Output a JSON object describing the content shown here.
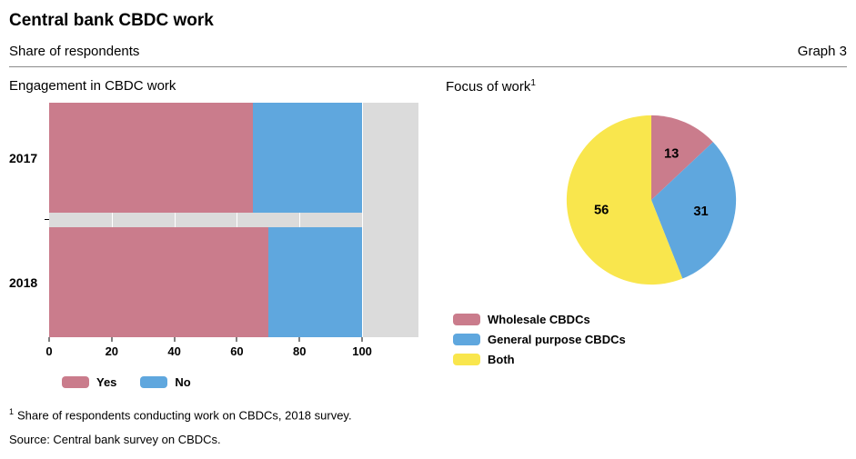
{
  "header": {
    "title": "Central bank CBDC work",
    "subtitle": "Share of respondents",
    "graph_label": "Graph 3"
  },
  "colors": {
    "pink": "#ca7c8c",
    "blue": "#5fa7de",
    "yellow": "#f9e64d",
    "plot_background": "#dbdbdb"
  },
  "chart_data": [
    {
      "type": "bar",
      "title": "Engagement in CBDC work",
      "orientation": "horizontal",
      "stacked": true,
      "categories": [
        "2017",
        "2018"
      ],
      "series": [
        {
          "name": "Yes",
          "color": "#ca7c8c",
          "values": [
            65,
            70
          ]
        },
        {
          "name": "No",
          "color": "#5fa7de",
          "values": [
            35,
            30
          ]
        }
      ],
      "xlim": [
        0,
        118
      ],
      "xticks": [
        0,
        20,
        40,
        60,
        80,
        100
      ],
      "grid": true,
      "legend_position": "bottom"
    },
    {
      "type": "pie",
      "title": "Focus of work",
      "title_superscript": "1",
      "slices": [
        {
          "label": "Wholesale CBDCs",
          "value": 13,
          "color": "#ca7c8c"
        },
        {
          "label": "General purpose CBDCs",
          "value": 31,
          "color": "#5fa7de"
        },
        {
          "label": "Both",
          "value": 56,
          "color": "#f9e64d"
        }
      ],
      "start_angle_deg": -90,
      "direction": "clockwise",
      "legend_position": "bottom-left"
    }
  ],
  "footnotes": [
    {
      "marker": "1",
      "text": "Share of respondents conducting work on CBDCs, 2018 survey."
    },
    {
      "text": "Source: Central bank survey on CBDCs."
    }
  ]
}
